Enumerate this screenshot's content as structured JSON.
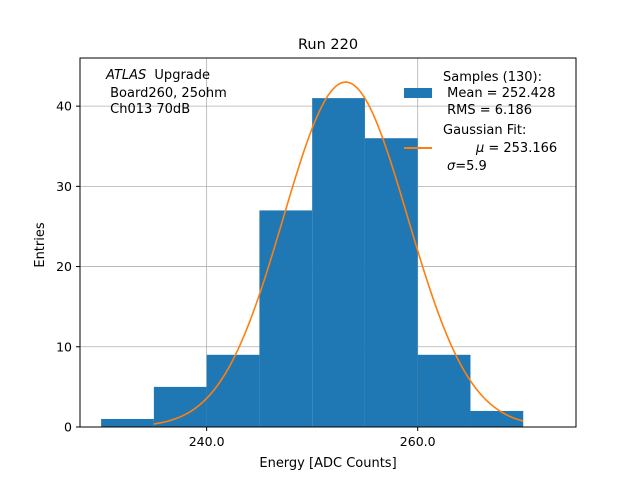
{
  "chart_data": {
    "type": "bar",
    "title": "Run 220",
    "xlabel": "Energy [ADC Counts]",
    "ylabel": "Entries",
    "xlim": [
      228,
      275
    ],
    "ylim": [
      0,
      46
    ],
    "x_ticks": [
      240,
      260
    ],
    "x_tick_labels": [
      "240.0",
      "260.0"
    ],
    "y_ticks": [
      0,
      10,
      20,
      30,
      40
    ],
    "y_tick_labels": [
      "0",
      "10",
      "20",
      "30",
      "40"
    ],
    "grid": true,
    "bin_edges": [
      230,
      235,
      240,
      245,
      250,
      255,
      260,
      265,
      270
    ],
    "values": [
      1,
      5,
      9,
      27,
      41,
      36,
      9,
      2
    ],
    "histogram_color": "#1f77b4",
    "fit": {
      "name": "Gaussian Fit",
      "mu": 253.166,
      "sigma": 5.9,
      "amplitude": 43,
      "x_range": [
        235,
        270
      ],
      "color": "#ff7f0e"
    },
    "annotation": {
      "experiment": "ATLAS",
      "lines": [
        "Upgrade",
        " Board260, 25ohm",
        " Ch013 70dB"
      ]
    },
    "legend": {
      "placement": "top-right",
      "samples_label": "Samples (130):",
      "mean_label": " Mean = 252.428",
      "rms_label": " RMS = 6.186",
      "fit_label": "Gaussian Fit:",
      "mu_symbol": "μ",
      "mu_value": " = 253.166",
      "sigma_symbol": "σ",
      "sigma_value": "=5.9"
    }
  }
}
